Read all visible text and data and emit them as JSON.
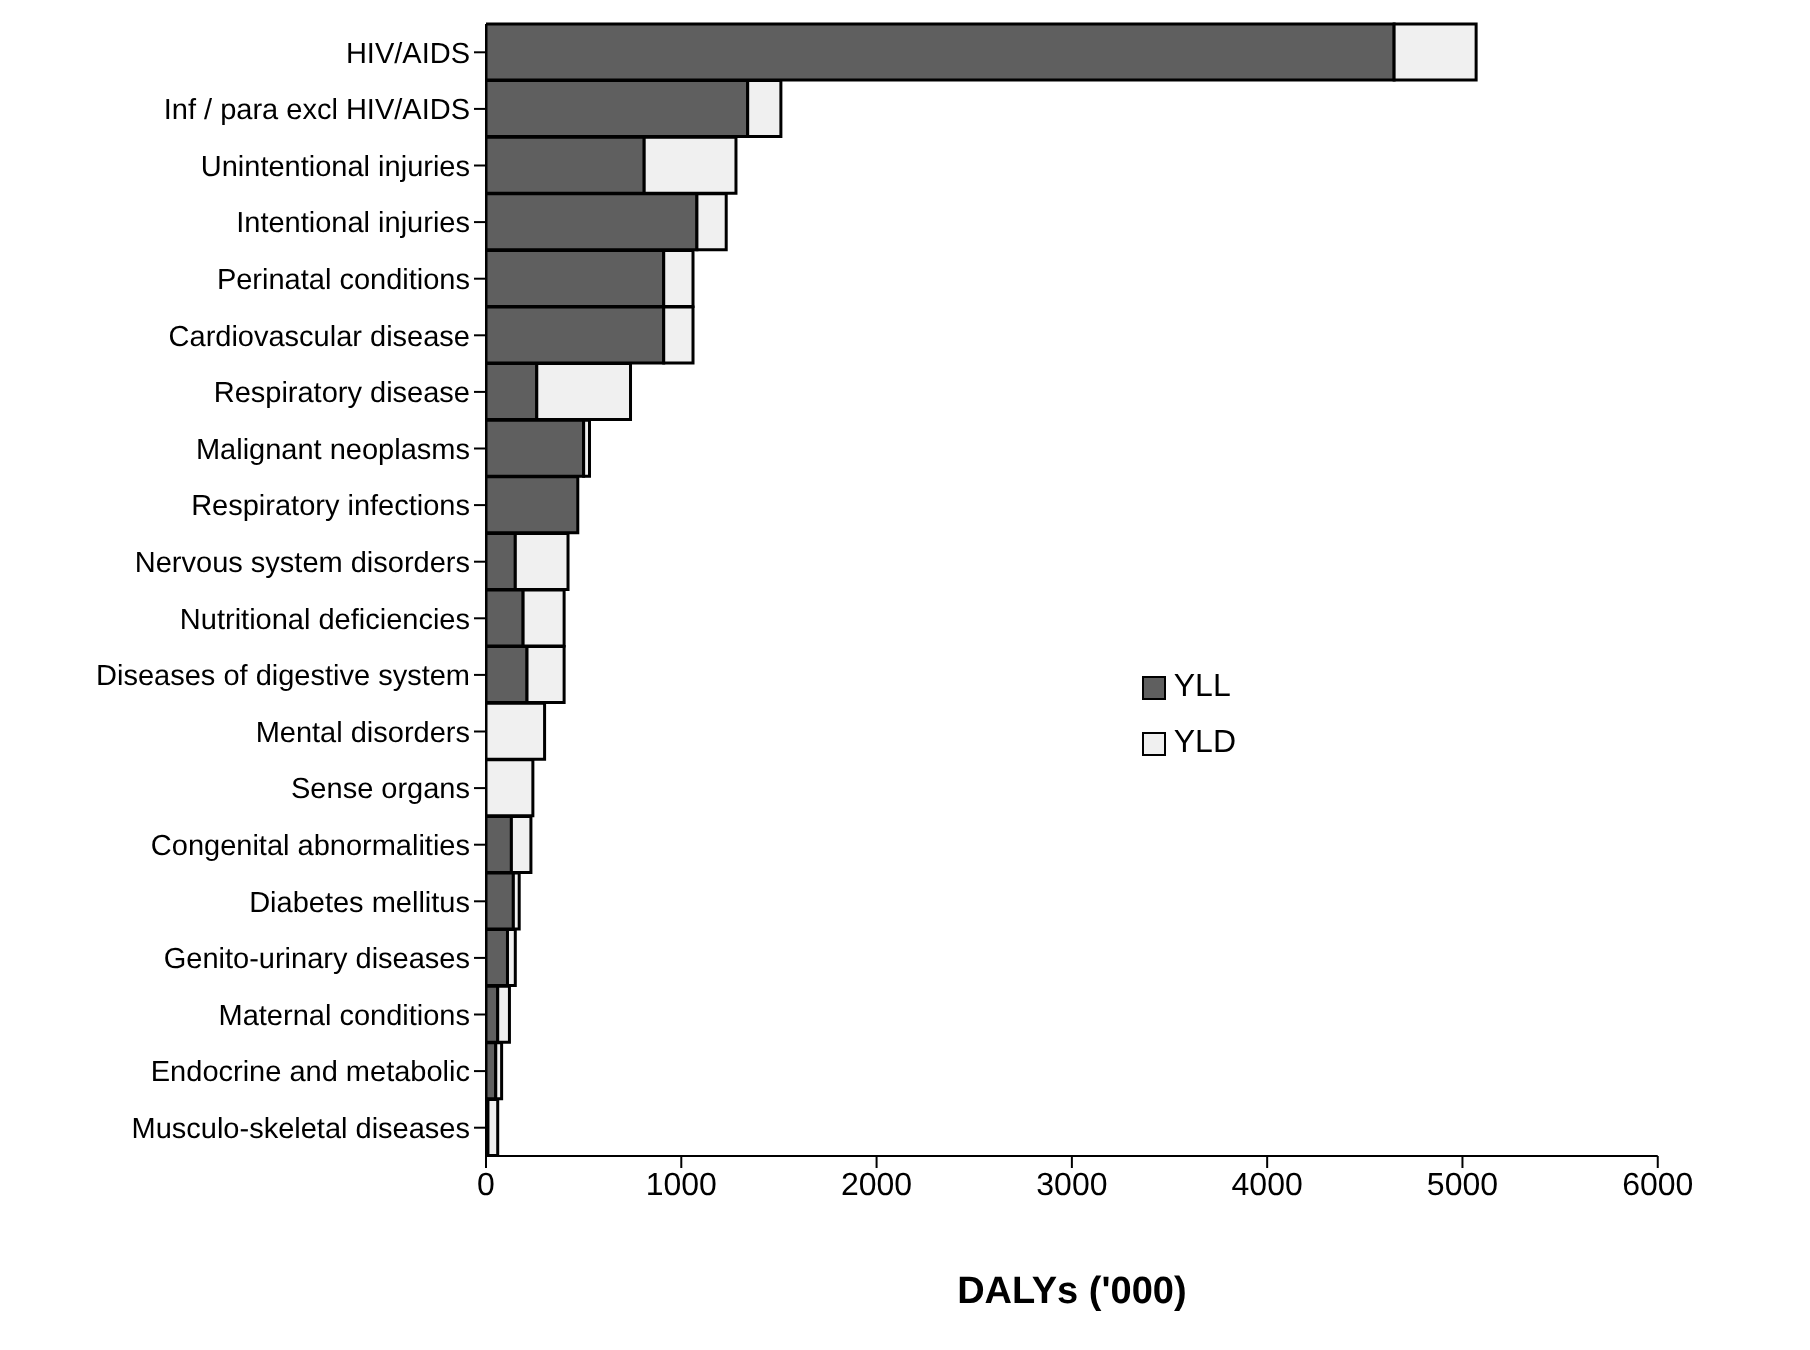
{
  "chart_data": {
    "type": "bar",
    "orientation": "horizontal",
    "stacked": true,
    "xlabel": "DALYs ('000)",
    "categories": [
      "HIV/AIDS",
      "Inf / para excl HIV/AIDS",
      "Unintentional injuries",
      "Intentional injuries",
      "Perinatal conditions",
      "Cardiovascular disease",
      "Respiratory disease",
      "Malignant neoplasms",
      "Respiratory infections",
      "Nervous system disorders",
      "Nutritional deficiencies",
      "Diseases of digestive system",
      "Mental disorders",
      "Sense organs",
      "Congenital abnormalities",
      "Diabetes mellitus",
      "Genito-urinary diseases",
      "Maternal conditions",
      "Endocrine and metabolic",
      "Musculo-skeletal diseases"
    ],
    "series": [
      {
        "name": "YLL",
        "color": "#5f5f5f",
        "values": [
          4650,
          1340,
          810,
          1080,
          910,
          910,
          260,
          500,
          470,
          150,
          190,
          210,
          null,
          0,
          130,
          140,
          110,
          60,
          50,
          10
        ]
      },
      {
        "name": "YLD",
        "color": "#f0f0f0",
        "values": [
          420,
          170,
          470,
          150,
          150,
          150,
          480,
          30,
          0,
          270,
          210,
          190,
          300,
          240,
          100,
          30,
          40,
          60,
          30,
          50
        ]
      }
    ],
    "xlim": [
      0,
      6000
    ],
    "xticks": [
      0,
      1000,
      2000,
      3000,
      4000,
      5000,
      6000
    ],
    "grid": false,
    "legend": "right"
  }
}
